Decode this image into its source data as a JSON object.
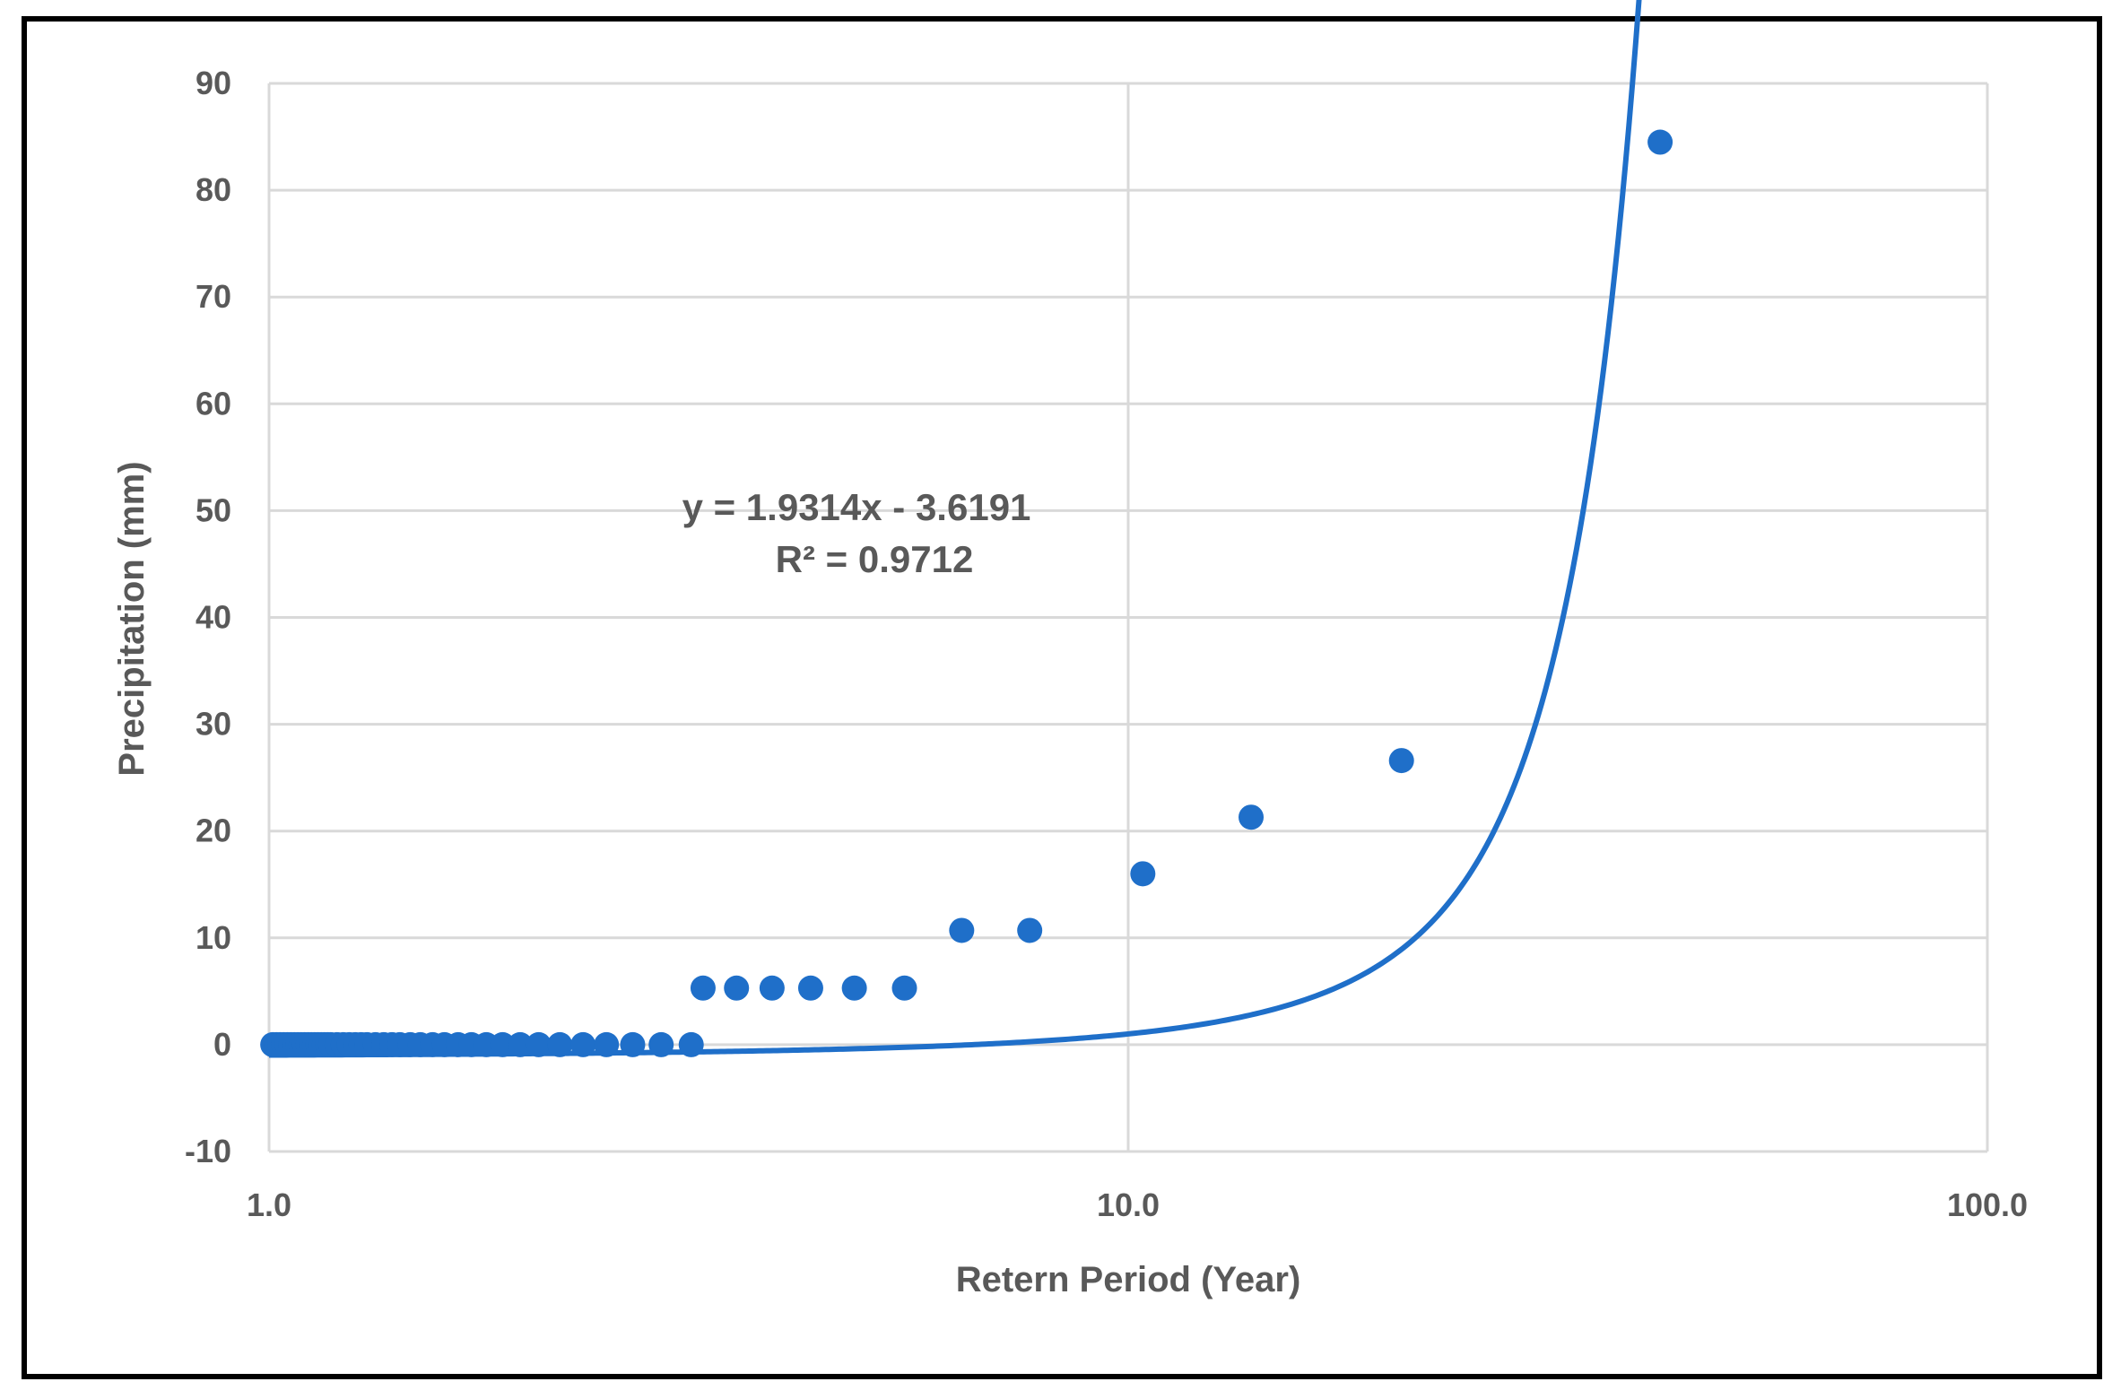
{
  "chart_data": {
    "type": "scatter",
    "xscale": "log",
    "xlim": [
      1,
      100
    ],
    "ylim": [
      -10,
      90
    ],
    "grid": true,
    "xlabel": "Retern Period (Year)",
    "ylabel": "Precipitation (mm)",
    "x_tick_labels": [
      "1.0",
      "10.0",
      "100.0"
    ],
    "x_ticks": [
      1,
      10,
      100
    ],
    "y_ticks": [
      -10,
      0,
      10,
      20,
      30,
      40,
      50,
      60,
      70,
      80,
      90
    ],
    "y_tick_labels": [
      "-10",
      "0",
      "10",
      "20",
      "30",
      "40",
      "50",
      "60",
      "70",
      "80",
      "90"
    ],
    "series": [
      {
        "color": "#1f6fc9",
        "points": [
          {
            "x": 1.01,
            "y": 0
          },
          {
            "x": 1.02,
            "y": 0
          },
          {
            "x": 1.03,
            "y": 0
          },
          {
            "x": 1.04,
            "y": 0
          },
          {
            "x": 1.05,
            "y": 0
          },
          {
            "x": 1.06,
            "y": 0
          },
          {
            "x": 1.07,
            "y": 0
          },
          {
            "x": 1.08,
            "y": 0
          },
          {
            "x": 1.09,
            "y": 0
          },
          {
            "x": 1.1,
            "y": 0
          },
          {
            "x": 1.11,
            "y": 0
          },
          {
            "x": 1.12,
            "y": 0
          },
          {
            "x": 1.13,
            "y": 0
          },
          {
            "x": 1.14,
            "y": 0
          },
          {
            "x": 1.15,
            "y": 0
          },
          {
            "x": 1.16,
            "y": 0
          },
          {
            "x": 1.17,
            "y": 0
          },
          {
            "x": 1.18,
            "y": 0
          },
          {
            "x": 1.2,
            "y": 0
          },
          {
            "x": 1.22,
            "y": 0
          },
          {
            "x": 1.24,
            "y": 0
          },
          {
            "x": 1.26,
            "y": 0
          },
          {
            "x": 1.28,
            "y": 0
          },
          {
            "x": 1.3,
            "y": 0
          },
          {
            "x": 1.33,
            "y": 0
          },
          {
            "x": 1.36,
            "y": 0
          },
          {
            "x": 1.39,
            "y": 0
          },
          {
            "x": 1.42,
            "y": 0
          },
          {
            "x": 1.46,
            "y": 0
          },
          {
            "x": 1.5,
            "y": 0
          },
          {
            "x": 1.55,
            "y": 0
          },
          {
            "x": 1.6,
            "y": 0
          },
          {
            "x": 1.66,
            "y": 0
          },
          {
            "x": 1.72,
            "y": 0
          },
          {
            "x": 1.79,
            "y": 0
          },
          {
            "x": 1.87,
            "y": 0
          },
          {
            "x": 1.96,
            "y": 0
          },
          {
            "x": 2.06,
            "y": 0
          },
          {
            "x": 2.18,
            "y": 0
          },
          {
            "x": 2.32,
            "y": 0
          },
          {
            "x": 2.47,
            "y": 0
          },
          {
            "x": 2.65,
            "y": 0
          },
          {
            "x": 2.86,
            "y": 0
          },
          {
            "x": 3.1,
            "y": 0
          },
          {
            "x": 3.2,
            "y": 5.3
          },
          {
            "x": 3.5,
            "y": 5.3
          },
          {
            "x": 3.85,
            "y": 5.3
          },
          {
            "x": 4.27,
            "y": 5.3
          },
          {
            "x": 4.8,
            "y": 5.3
          },
          {
            "x": 5.49,
            "y": 5.3
          },
          {
            "x": 6.4,
            "y": 10.7
          },
          {
            "x": 7.68,
            "y": 10.7
          },
          {
            "x": 10.4,
            "y": 16.0
          },
          {
            "x": 13.9,
            "y": 21.3
          },
          {
            "x": 20.8,
            "y": 26.6
          },
          {
            "x": 41.6,
            "y": 84.5
          }
        ]
      }
    ],
    "trendline": {
      "type": "exponential",
      "color": "#1f6fc9",
      "x_range": [
        1,
        41.6
      ],
      "equation": "y = 1.9314x - 3.6191",
      "r_squared": "R² = 0.9712"
    }
  }
}
